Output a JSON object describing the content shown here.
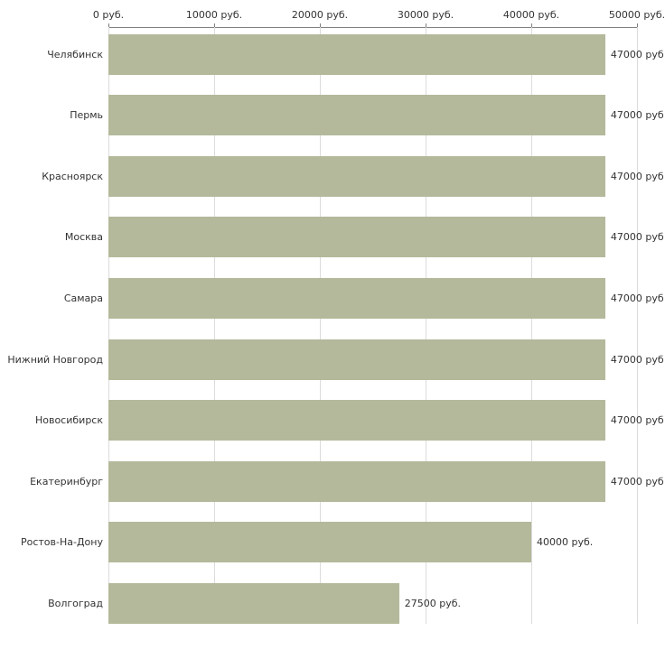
{
  "chart_data": {
    "type": "bar",
    "orientation": "horizontal",
    "title": "",
    "xlabel": "",
    "ylabel": "",
    "xlim": [
      0,
      50000
    ],
    "grid": true,
    "axis_position": "top",
    "bar_color": "#b3b99a",
    "x_ticks": [
      0,
      10000,
      20000,
      30000,
      40000,
      50000
    ],
    "x_tick_labels": [
      "0 руб.",
      "10000 руб.",
      "20000 руб.",
      "30000 руб.",
      "40000 руб.",
      "50000 руб."
    ],
    "categories": [
      "Челябинск",
      "Пермь",
      "Красноярск",
      "Москва",
      "Самара",
      "Нижний Новгород",
      "Новосибирск",
      "Екатеринбург",
      "Ростов-На-Дону",
      "Волгоград"
    ],
    "values": [
      47000,
      47000,
      47000,
      47000,
      47000,
      47000,
      47000,
      47000,
      40000,
      27500
    ],
    "value_labels": [
      "47000 руб",
      "47000 руб",
      "47000 руб",
      "47000 руб",
      "47000 руб",
      "47000 руб",
      "47000 руб",
      "47000 руб",
      "40000 руб.",
      "27500 руб."
    ]
  }
}
